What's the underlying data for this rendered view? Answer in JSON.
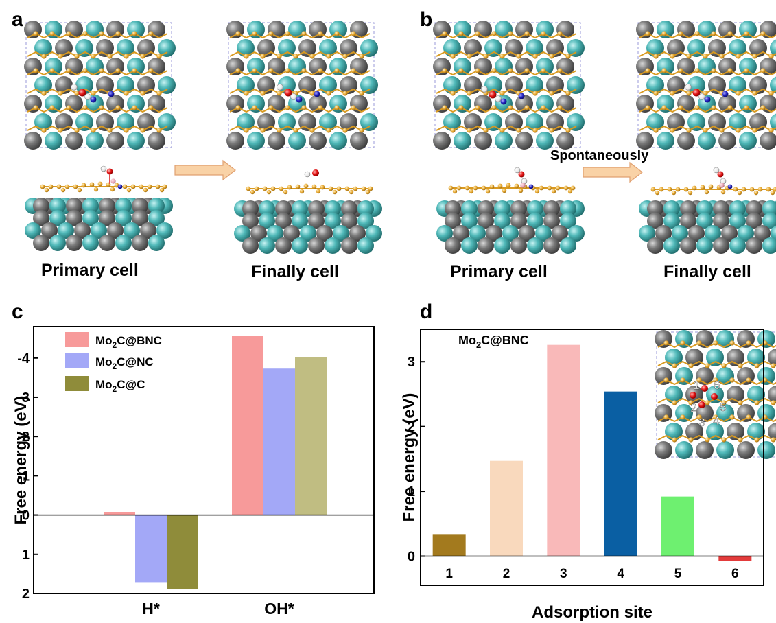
{
  "panels": {
    "a": "a",
    "b": "b",
    "c": "c",
    "d": "d"
  },
  "captions": {
    "a_primary": "Primary cell",
    "a_final": "Finally cell",
    "b_primary": "Primary cell",
    "b_final": "Finally cell",
    "b_arrow_label": "Spontaneously"
  },
  "colors": {
    "mo_atom": "#4fb8b8",
    "c_atom": "#7a7a7a",
    "carbon_layer": "#e8a830",
    "oxygen": "#e01010",
    "nitrogen": "#2020c0",
    "hydrogen": "#ffffff",
    "arrow_fill": "#f9d2a6",
    "arrow_stroke": "#e0a070"
  },
  "chart_data": [
    {
      "type": "bar",
      "ylabel": "Free energy (eV)",
      "xlabel": "",
      "categories": [
        "H*",
        "OH*"
      ],
      "ylim": [
        2,
        -4.8
      ],
      "yticks": [
        2,
        1,
        0,
        -1,
        -2,
        -3,
        -4
      ],
      "ytick_labels": [
        "2",
        "1",
        "0",
        "-1",
        "-2",
        "-3",
        "-4"
      ],
      "y_axis": "inverted",
      "legend_position": "top-left",
      "series": [
        {
          "name": "Mo2C@BNC",
          "name_main": "Mo",
          "name_sub": "2",
          "name_rest": "C@BNC",
          "color": "#f79a9a",
          "values": [
            -0.08,
            -4.57
          ]
        },
        {
          "name": "Mo2C@NC",
          "name_main": "Mo",
          "name_sub": "2",
          "name_rest": "C@NC",
          "color": "#a3a8f7",
          "values": [
            1.71,
            -3.73
          ]
        },
        {
          "name": "Mo2C@C",
          "name_main": "Mo",
          "name_sub": "2",
          "name_rest": "C@C",
          "color_legend": "#8f8c3a",
          "color": "#c0bd82",
          "color_h": "#8f8c3a",
          "values": [
            1.88,
            -4.02
          ]
        }
      ]
    },
    {
      "type": "bar",
      "title_main": "Mo",
      "title_sub": "2",
      "title_rest": "C@BNC",
      "ylabel": "Free energy (eV)",
      "xlabel": "Adsorption site",
      "categories": [
        "1",
        "2",
        "3",
        "4",
        "5",
        "6"
      ],
      "values": [
        0.33,
        1.47,
        3.26,
        2.54,
        0.92,
        -0.07
      ],
      "colors": [
        "#a37a1e",
        "#f9d9bd",
        "#f9b9b9",
        "#0a5fa3",
        "#6ef070",
        "#e33b3b"
      ],
      "ylim": [
        -0.45,
        3.5
      ],
      "yticks": [
        0,
        1,
        2,
        3
      ],
      "inset_site_labels": [
        "1",
        "6",
        "2",
        "5",
        "3",
        "4"
      ]
    }
  ]
}
